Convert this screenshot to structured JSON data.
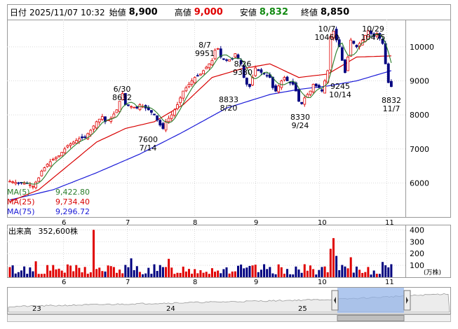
{
  "header": {
    "date_label": "日付",
    "datetime": "2025/11/07 10:32",
    "open_label": "始値",
    "open": "8,900",
    "high_label": "高値",
    "high": "9,000",
    "low_label": "安値",
    "low": "8,832",
    "close_label": "終値",
    "close": "8,850"
  },
  "ma_legend": [
    {
      "name": "MA(5)",
      "value": "9,422.80",
      "color": "#2a7d2a"
    },
    {
      "name": "MA(25)",
      "value": "9,734.40",
      "color": "#d80000"
    },
    {
      "name": "MA(75)",
      "value": "9,296.72",
      "color": "#1a1ad8"
    }
  ],
  "volume_legend": {
    "label": "出来高",
    "value": "352,600株"
  },
  "volume_unit": "(万株)",
  "navigator_labels": [
    "23",
    "24",
    "25"
  ],
  "colors": {
    "up": "#e00000",
    "down": "#000080",
    "ma5": "#2a7d2a",
    "ma25": "#d80000",
    "ma75": "#1a1ad8",
    "navigator_fill": "#8fb0e8"
  },
  "chart_data": {
    "type": "candlestick",
    "x_tick_labels": [
      "6",
      "7",
      "8",
      "9",
      "10",
      "11"
    ],
    "y_ticks": [
      6000,
      7000,
      8000,
      9000,
      10000
    ],
    "ylim": [
      5000,
      10800
    ],
    "annotations": [
      {
        "text": [
          "6/30",
          "8632"
        ],
        "value": 8632
      },
      {
        "text": [
          "7600",
          "7/14"
        ],
        "value": 7600
      },
      {
        "text": [
          "8/7",
          "9951"
        ],
        "value": 9951
      },
      {
        "text": [
          "8/26",
          "9380"
        ],
        "value": 9380
      },
      {
        "text": [
          "8833",
          "8/20"
        ],
        "value": 8833
      },
      {
        "text": [
          "8330",
          "9/24"
        ],
        "value": 8330
      },
      {
        "text": [
          "10/7",
          "10460"
        ],
        "value": 10460
      },
      {
        "text": [
          "10/29",
          "10475"
        ],
        "value": 10475
      },
      {
        "text": [
          "9245",
          "10/14"
        ],
        "value": 9245
      },
      {
        "text": [
          "8832",
          "11/7"
        ],
        "value": 8832
      }
    ],
    "price_path": [
      [
        0,
        6050
      ],
      [
        3,
        6000
      ],
      [
        6,
        5990
      ],
      [
        8,
        5900
      ],
      [
        10,
        6150
      ],
      [
        11,
        6350
      ],
      [
        12,
        6450
      ],
      [
        13,
        6550
      ],
      [
        15,
        6700
      ],
      [
        17,
        6800
      ],
      [
        18,
        6900
      ],
      [
        20,
        7100
      ],
      [
        22,
        7200
      ],
      [
        24,
        7300
      ],
      [
        26,
        7350
      ],
      [
        28,
        7550
      ],
      [
        30,
        7800
      ],
      [
        32,
        7950
      ],
      [
        33,
        7800
      ],
      [
        35,
        7900
      ],
      [
        37,
        8150
      ],
      [
        38,
        8400
      ],
      [
        39,
        8632
      ],
      [
        40,
        8300
      ],
      [
        42,
        8250
      ],
      [
        44,
        8200
      ],
      [
        45,
        8300
      ],
      [
        47,
        8200
      ],
      [
        48,
        8150
      ],
      [
        50,
        8000
      ],
      [
        52,
        7700
      ],
      [
        53,
        7600
      ],
      [
        54,
        7800
      ],
      [
        56,
        8000
      ],
      [
        58,
        8300
      ],
      [
        60,
        8700
      ],
      [
        62,
        8900
      ],
      [
        64,
        9100
      ],
      [
        66,
        9200
      ],
      [
        68,
        9400
      ],
      [
        70,
        9600
      ],
      [
        71,
        9900
      ],
      [
        72,
        9951
      ],
      [
        73,
        9700
      ],
      [
        75,
        9600
      ],
      [
        77,
        9650
      ],
      [
        78,
        9800
      ],
      [
        80,
        9500
      ],
      [
        81,
        9100
      ],
      [
        82,
        8900
      ],
      [
        83,
        8833
      ],
      [
        84,
        9100
      ],
      [
        85,
        9380
      ],
      [
        86,
        9300
      ],
      [
        88,
        9200
      ],
      [
        90,
        9100
      ],
      [
        91,
        8800
      ],
      [
        92,
        8700
      ],
      [
        94,
        9000
      ],
      [
        95,
        9100
      ],
      [
        96,
        9000
      ],
      [
        98,
        8900
      ],
      [
        99,
        8700
      ],
      [
        100,
        8400
      ],
      [
        101,
        8330
      ],
      [
        102,
        8500
      ],
      [
        104,
        8700
      ],
      [
        105,
        8900
      ],
      [
        107,
        8800
      ],
      [
        108,
        8700
      ],
      [
        110,
        9300
      ],
      [
        111,
        10300
      ],
      [
        112,
        10460
      ],
      [
        113,
        10200
      ],
      [
        114,
        10000
      ],
      [
        115,
        9600
      ],
      [
        116,
        9245
      ],
      [
        117,
        9700
      ],
      [
        118,
        10200
      ],
      [
        120,
        10000
      ],
      [
        122,
        10200
      ],
      [
        124,
        10475
      ],
      [
        126,
        10300
      ],
      [
        127,
        10400
      ],
      [
        129,
        10100
      ],
      [
        130,
        9500
      ],
      [
        131,
        8950
      ],
      [
        132,
        8832
      ]
    ],
    "ma75_path": [
      [
        0,
        5500
      ],
      [
        15,
        5800
      ],
      [
        30,
        6300
      ],
      [
        45,
        6850
      ],
      [
        60,
        7500
      ],
      [
        75,
        8200
      ],
      [
        90,
        8600
      ],
      [
        100,
        8750
      ],
      [
        110,
        8850
      ],
      [
        120,
        9000
      ],
      [
        132,
        9300
      ]
    ],
    "ma25_path": [
      [
        0,
        5450
      ],
      [
        10,
        5800
      ],
      [
        20,
        6500
      ],
      [
        30,
        7200
      ],
      [
        40,
        7600
      ],
      [
        50,
        7800
      ],
      [
        60,
        8300
      ],
      [
        70,
        9100
      ],
      [
        80,
        9350
      ],
      [
        90,
        9500
      ],
      [
        100,
        9100
      ],
      [
        110,
        9200
      ],
      [
        120,
        9700
      ],
      [
        132,
        9734
      ]
    ],
    "volume": {
      "yticks": [
        100,
        200,
        300,
        400
      ],
      "ylim": [
        0,
        420
      ]
    }
  }
}
